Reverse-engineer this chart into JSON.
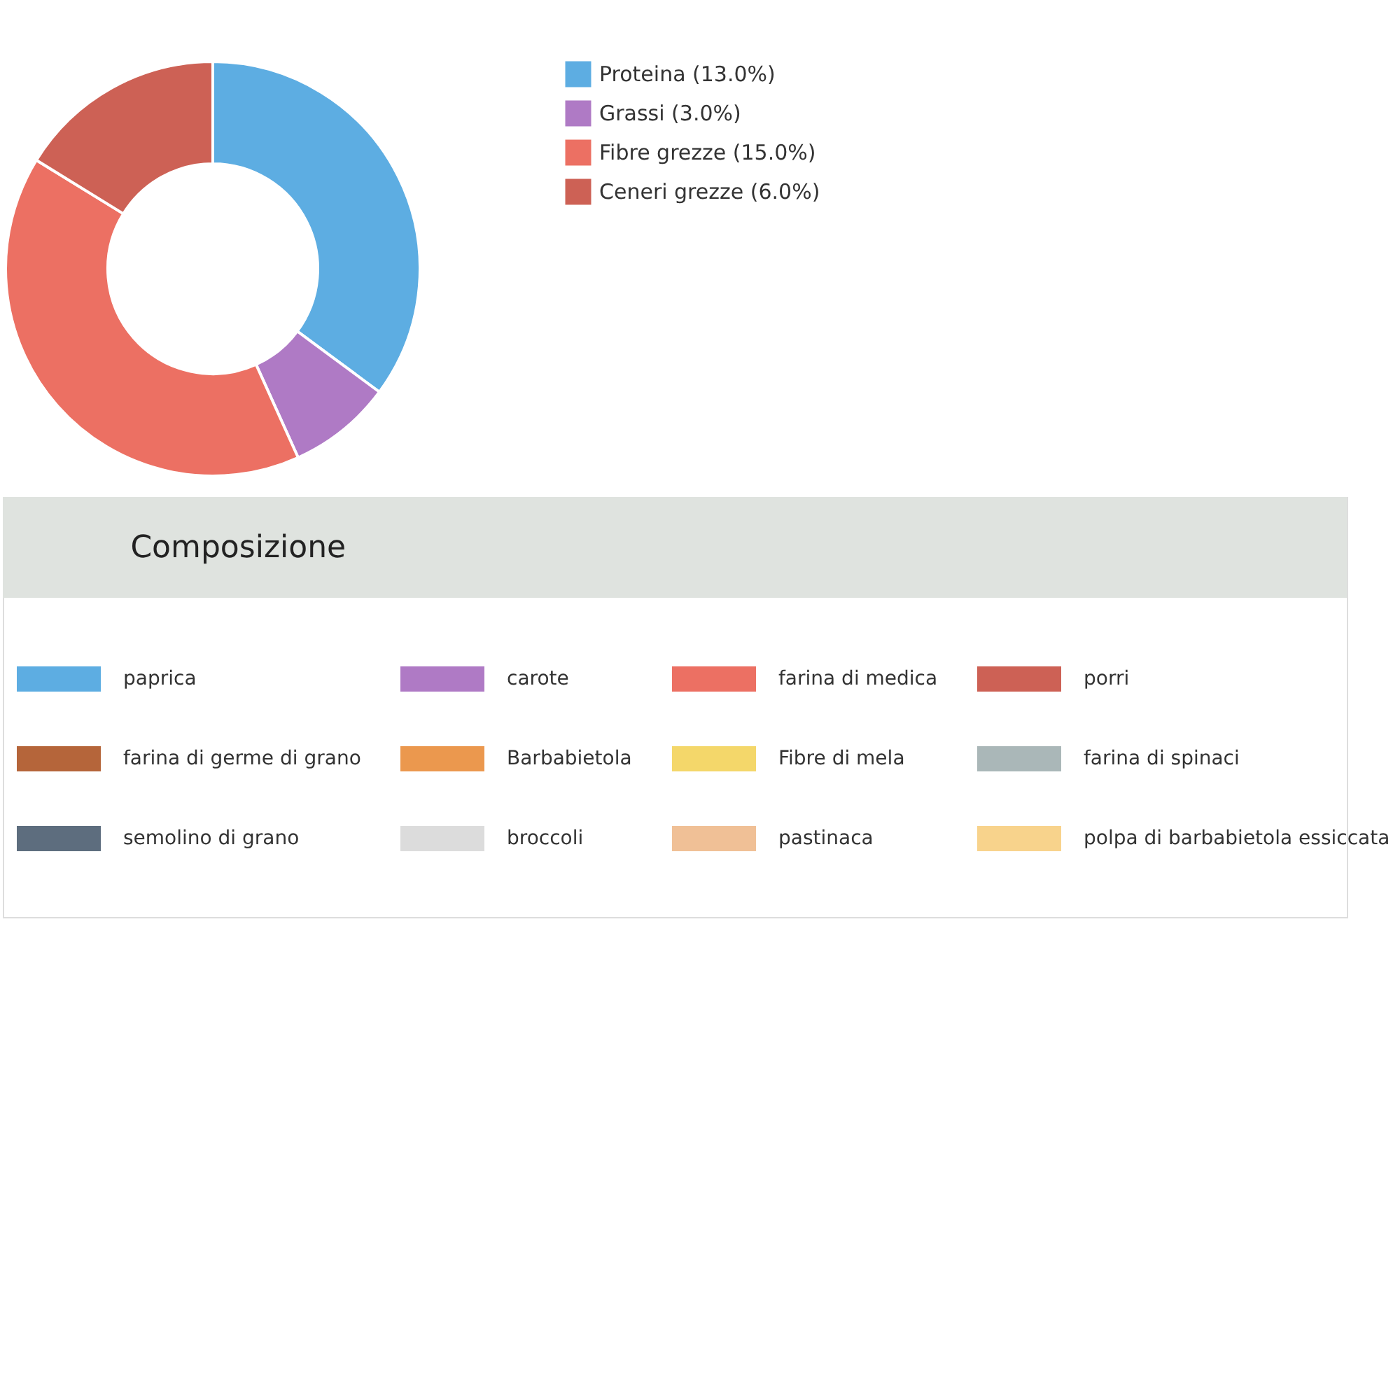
{
  "chart_data": [
    {
      "type": "donut",
      "categories": [
        "Proteina (13.0%)",
        "Grassi (3.0%)",
        "Fibre grezze (15.0%)",
        "Ceneri grezze (6.0%)"
      ],
      "values": [
        13,
        3,
        15,
        6
      ],
      "colors": [
        "#5dade2",
        "#af7ac5",
        "#ec7063",
        "#cd6155"
      ],
      "legend": "right"
    },
    {
      "type": "other",
      "title": "Composizione",
      "categories": [
        "paprica",
        "carote",
        "farina di medica",
        "porri",
        "farina di germe di grano",
        "Barbabietola",
        "Fibre di mela",
        "farina di spinaci",
        "semolino di grano",
        "broccoli",
        "pastinaca",
        "polpa di barbabietola essiccata"
      ],
      "colors": [
        "#5dade2",
        "#af7ac5",
        "#ec7063",
        "#cd6155",
        "#b5653a",
        "#eb984e",
        "#f4d76a",
        "#aab7b8",
        "#5d6d7e",
        "#dcdcdc",
        "#f0c096",
        "#f8d38c"
      ]
    }
  ]
}
